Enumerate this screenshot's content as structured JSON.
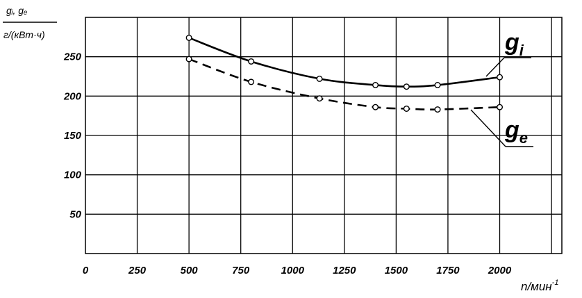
{
  "chart_data": {
    "type": "line",
    "ylabel_top": "gᵢ, gₑ",
    "ylabel_bottom": "г/(кВт·ч)",
    "xlabel": "n/мин",
    "xlabel_exp": "-1",
    "xlim": [
      0,
      2300
    ],
    "ylim": [
      0,
      300
    ],
    "x_ticks": [
      0,
      250,
      500,
      750,
      1000,
      1250,
      1500,
      1750,
      2000
    ],
    "y_ticks": [
      50,
      100,
      150,
      200,
      250
    ],
    "grid": true,
    "series": [
      {
        "name": "g",
        "subscript": "i",
        "style": "solid",
        "x": [
          500,
          800,
          1130,
          1400,
          1550,
          1700,
          2000
        ],
        "y": [
          274,
          244,
          222,
          214,
          212,
          214,
          224
        ]
      },
      {
        "name": "g",
        "subscript": "e",
        "style": "dashed",
        "x": [
          500,
          800,
          1130,
          1400,
          1550,
          1700,
          2000
        ],
        "y": [
          247,
          218,
          197,
          186,
          184,
          183,
          186
        ]
      }
    ]
  }
}
